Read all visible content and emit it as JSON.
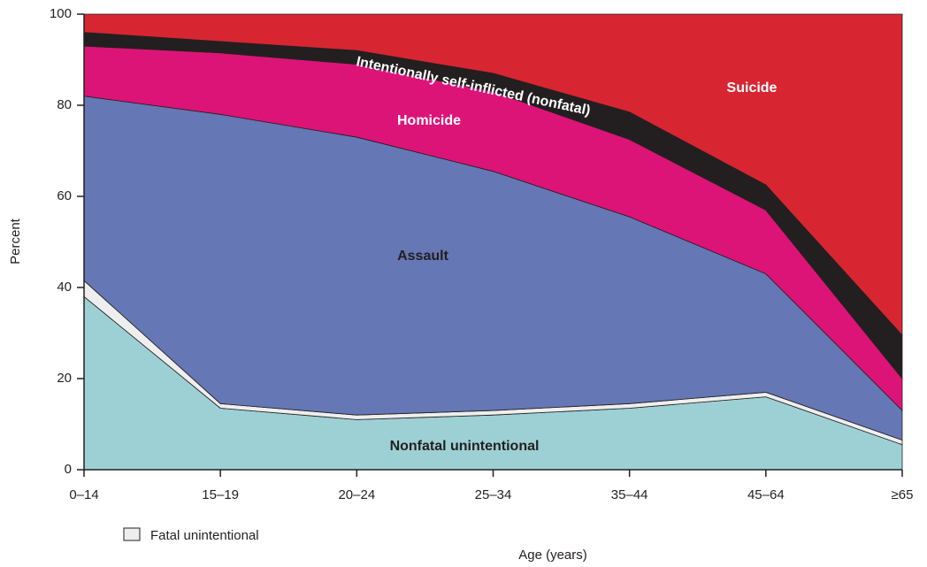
{
  "chart_data": {
    "type": "stacked_area",
    "xlabel": "Age (years)",
    "ylabel": "Percent",
    "categories": [
      "0–14",
      "15–19",
      "20–24",
      "25–34",
      "35–44",
      "45–64",
      "≥65"
    ],
    "ylim": [
      0,
      100
    ],
    "yticks": [
      0,
      20,
      40,
      60,
      80,
      100
    ],
    "series": [
      {
        "name": "Nonfatal unintentional",
        "color": "#9dd0d4",
        "values": [
          38,
          13.5,
          11,
          12,
          13.5,
          16,
          5.5
        ]
      },
      {
        "name": "Fatal unintentional",
        "color": "#eeeeee",
        "values": [
          3.5,
          1,
          1,
          1,
          1,
          1,
          1
        ]
      },
      {
        "name": "Assault",
        "color": "#6577b5",
        "values": [
          40.5,
          63.5,
          61,
          52.5,
          41,
          26,
          6.5
        ]
      },
      {
        "name": "Homicide",
        "color": "#dc1477",
        "values": [
          11,
          13.5,
          16,
          17.5,
          17,
          14,
          7
        ]
      },
      {
        "name": "Intentionally self-inflicted (nonfatal)",
        "color": "#231f20",
        "values": [
          3,
          2.5,
          3,
          4,
          6,
          5.5,
          9.5
        ]
      },
      {
        "name": "Suicide",
        "color": "#d72631",
        "values": [
          4,
          6,
          8,
          13,
          21.5,
          37.5,
          70.5
        ]
      }
    ]
  }
}
